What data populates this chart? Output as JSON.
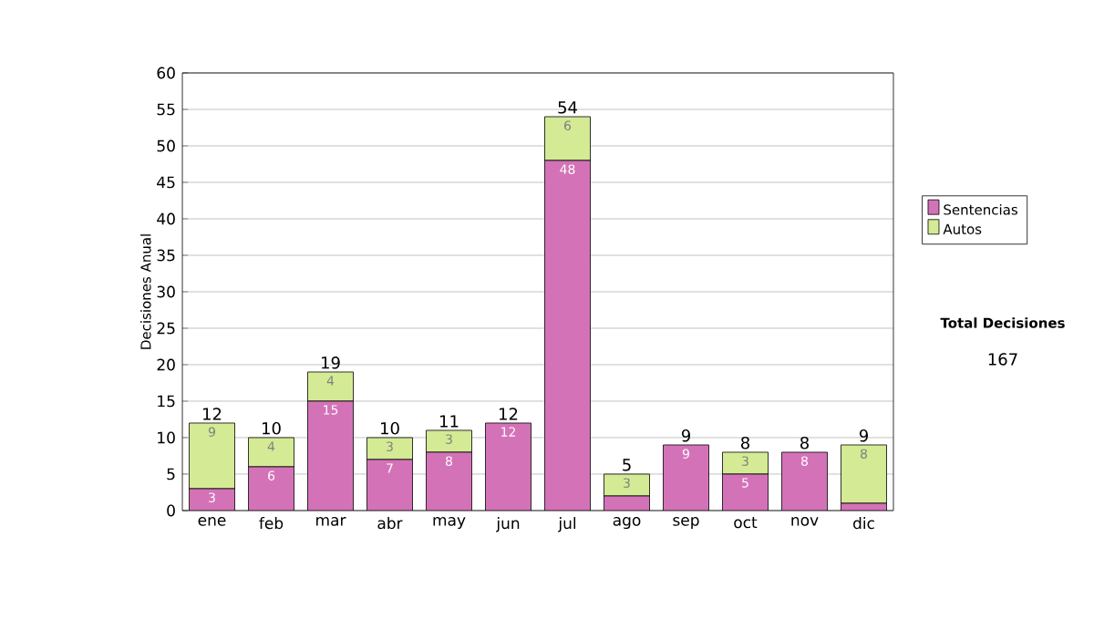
{
  "chart_data": {
    "type": "bar",
    "stacked": true,
    "ylabel": "Decisiones Anual",
    "categories": [
      "ene",
      "feb",
      "mar",
      "abr",
      "may",
      "jun",
      "jul",
      "ago",
      "sep",
      "oct",
      "nov",
      "dic"
    ],
    "series": [
      {
        "name": "Sentencias",
        "color": "#d472b8",
        "values": [
          3,
          6,
          15,
          7,
          8,
          12,
          48,
          2,
          9,
          5,
          8,
          1
        ],
        "value_labels": [
          "3",
          "6",
          "15",
          "7",
          "8",
          "12",
          "48",
          null,
          "9",
          "5",
          "8",
          null
        ]
      },
      {
        "name": "Autos",
        "color": "#d4ea94",
        "values": [
          9,
          4,
          4,
          3,
          3,
          0,
          6,
          3,
          0,
          3,
          0,
          8
        ],
        "value_labels": [
          "9",
          "4",
          "4",
          "3",
          "3",
          null,
          "6",
          "3",
          null,
          "3",
          null,
          "8"
        ]
      }
    ],
    "totals": [
      "12",
      "10",
      "19",
      "10",
      "11",
      "12",
      "54",
      "5",
      "9",
      "8",
      "8",
      "9"
    ],
    "ylim": [
      0,
      60
    ],
    "yticks": [
      0,
      5,
      10,
      15,
      20,
      25,
      30,
      35,
      40,
      45,
      50,
      55,
      60
    ],
    "grid": "y",
    "legend": "right",
    "annotations": [
      "Total Decisiones",
      "167"
    ]
  }
}
